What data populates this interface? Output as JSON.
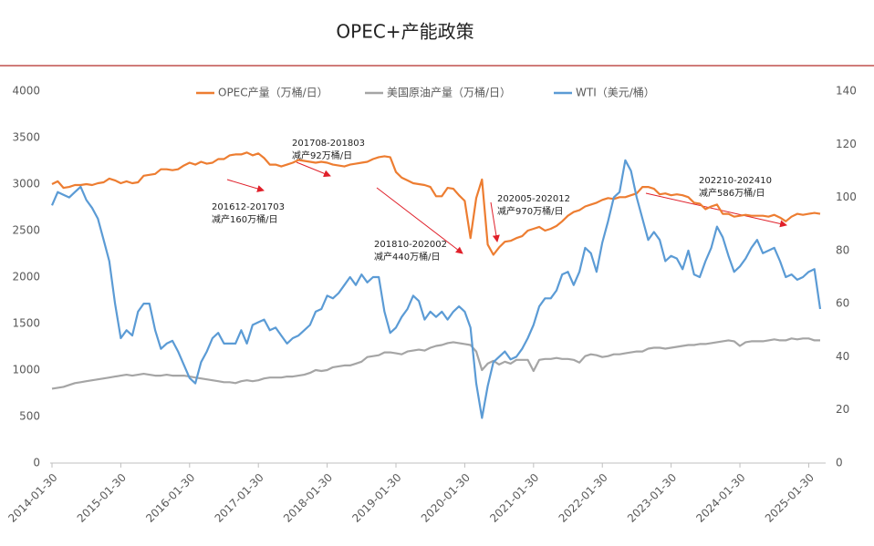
{
  "chart_data": {
    "type": "line",
    "title": "OPEC+产能政策",
    "categories": [
      "2014-01-30",
      null,
      null,
      null,
      null,
      null,
      null,
      null,
      null,
      null,
      null,
      null,
      "2015-01-30",
      null,
      null,
      null,
      null,
      null,
      null,
      null,
      null,
      null,
      null,
      null,
      "2016-01-30",
      null,
      null,
      null,
      null,
      null,
      null,
      null,
      null,
      null,
      null,
      null,
      "2017-01-30",
      null,
      null,
      null,
      null,
      null,
      null,
      null,
      null,
      null,
      null,
      null,
      "2018-01-30",
      null,
      null,
      null,
      null,
      null,
      null,
      null,
      null,
      null,
      null,
      null,
      "2019-01-30",
      null,
      null,
      null,
      null,
      null,
      null,
      null,
      null,
      null,
      null,
      null,
      "2020-01-30",
      null,
      null,
      null,
      null,
      null,
      null,
      null,
      null,
      null,
      null,
      null,
      "2021-01-30",
      null,
      null,
      null,
      null,
      null,
      null,
      null,
      null,
      null,
      null,
      null,
      "2022-01-30",
      null,
      null,
      null,
      null,
      null,
      null,
      null,
      null,
      null,
      null,
      null,
      "2023-01-30",
      null,
      null,
      null,
      null,
      null,
      null,
      null,
      null,
      null,
      null,
      null,
      "2024-01-30",
      null,
      null,
      null,
      null,
      null,
      null,
      null,
      null,
      null,
      null,
      null,
      "2025-01-30",
      null,
      null
    ],
    "series": [
      {
        "name": "OPEC产量（万桶/日）",
        "color": "#ED7D31",
        "values": [
          3000,
          3030,
          2960,
          2970,
          2990,
          2990,
          3000,
          2990,
          3010,
          3020,
          3060,
          3040,
          3010,
          3030,
          3010,
          3020,
          3090,
          3100,
          3110,
          3160,
          3160,
          3150,
          3160,
          3200,
          3230,
          3210,
          3240,
          3220,
          3230,
          3270,
          3270,
          3310,
          3320,
          3320,
          3340,
          3310,
          3330,
          3280,
          3210,
          3210,
          3190,
          3210,
          3230,
          3260,
          3250,
          3240,
          3230,
          3240,
          3230,
          3210,
          3200,
          3190,
          3210,
          3220,
          3230,
          3240,
          3270,
          3290,
          3300,
          3290,
          3130,
          3070,
          3040,
          3010,
          3000,
          2990,
          2970,
          2870,
          2870,
          2960,
          2950,
          2880,
          2820,
          2420,
          2850,
          3050,
          2350,
          2240,
          2320,
          2380,
          2390,
          2420,
          2440,
          2500,
          2520,
          2540,
          2500,
          2520,
          2550,
          2600,
          2660,
          2700,
          2720,
          2760,
          2780,
          2800,
          2830,
          2850,
          2840,
          2860,
          2860,
          2880,
          2900,
          2970,
          2970,
          2950,
          2890,
          2900,
          2880,
          2890,
          2880,
          2860,
          2800,
          2790,
          2730,
          2760,
          2780,
          2680,
          2680,
          2650,
          2660,
          2670,
          2660,
          2660,
          2660,
          2650,
          2670,
          2640,
          2600,
          2650,
          2680,
          2670,
          2680,
          2690,
          2680
        ]
      },
      {
        "name": "美国原油产量（万桶/日）",
        "color": "#A5A5A5",
        "values": [
          800,
          810,
          820,
          840,
          860,
          870,
          880,
          890,
          900,
          910,
          920,
          930,
          940,
          950,
          940,
          950,
          960,
          950,
          940,
          940,
          950,
          940,
          940,
          940,
          930,
          920,
          910,
          900,
          890,
          880,
          870,
          870,
          860,
          880,
          890,
          880,
          890,
          910,
          920,
          920,
          920,
          930,
          930,
          940,
          950,
          970,
          1000,
          990,
          1000,
          1030,
          1040,
          1050,
          1050,
          1070,
          1090,
          1140,
          1150,
          1160,
          1190,
          1190,
          1180,
          1170,
          1200,
          1210,
          1220,
          1210,
          1240,
          1260,
          1270,
          1290,
          1300,
          1290,
          1280,
          1270,
          1200,
          1000,
          1070,
          1100,
          1060,
          1090,
          1070,
          1110,
          1110,
          1110,
          990,
          1110,
          1120,
          1120,
          1130,
          1120,
          1120,
          1110,
          1080,
          1150,
          1170,
          1160,
          1140,
          1150,
          1170,
          1170,
          1180,
          1190,
          1200,
          1200,
          1230,
          1240,
          1240,
          1230,
          1240,
          1250,
          1260,
          1270,
          1270,
          1280,
          1280,
          1290,
          1300,
          1310,
          1320,
          1310,
          1260,
          1300,
          1310,
          1310,
          1310,
          1320,
          1330,
          1320,
          1320,
          1340,
          1330,
          1340,
          1340,
          1320,
          1320
        ]
      },
      {
        "name": "WTI（美元/桶）",
        "color": "#5B9BD5",
        "axis": "y2",
        "values": [
          97,
          102,
          101,
          100,
          102,
          104,
          99,
          96,
          92,
          84,
          76,
          60,
          47,
          50,
          48,
          57,
          60,
          60,
          50,
          43,
          45,
          46,
          42,
          37,
          32,
          30,
          38,
          42,
          47,
          49,
          45,
          45,
          45,
          50,
          45,
          52,
          53,
          54,
          50,
          51,
          48,
          45,
          47,
          48,
          50,
          52,
          57,
          58,
          63,
          62,
          64,
          67,
          70,
          67,
          71,
          68,
          70,
          70,
          57,
          49,
          51,
          55,
          58,
          63,
          61,
          54,
          57,
          55,
          57,
          54,
          57,
          59,
          57,
          51,
          30,
          17,
          29,
          38,
          40,
          42,
          39,
          40,
          43,
          47,
          52,
          59,
          62,
          62,
          65,
          71,
          72,
          67,
          72,
          81,
          79,
          72,
          83,
          91,
          100,
          102,
          114,
          110,
          100,
          92,
          84,
          87,
          84,
          76,
          78,
          77,
          73,
          80,
          71,
          70,
          76,
          81,
          89,
          85,
          78,
          72,
          74,
          77,
          81,
          84,
          79,
          80,
          81,
          76,
          70,
          71,
          69,
          70,
          72,
          73,
          58
        ]
      }
    ],
    "ylim": [
      0,
      4000
    ],
    "yticks": [
      0,
      500,
      1000,
      1500,
      2000,
      2500,
      3000,
      3500,
      4000
    ],
    "y2lim": [
      0,
      140
    ],
    "y2ticks": [
      0,
      20,
      40,
      60,
      80,
      100,
      120,
      140
    ],
    "legend": "top",
    "annotations": [
      {
        "period": "201612-201703",
        "note": "减产160万桶/日"
      },
      {
        "period": "201708-201803",
        "note": "减产92万桶/日"
      },
      {
        "period": "201810-202002",
        "note": "减产440万桶/日"
      },
      {
        "period": "202005-202012",
        "note": "减产970万桶/日"
      },
      {
        "period": "202210-202410",
        "note": "减产586万桶/日"
      }
    ]
  }
}
